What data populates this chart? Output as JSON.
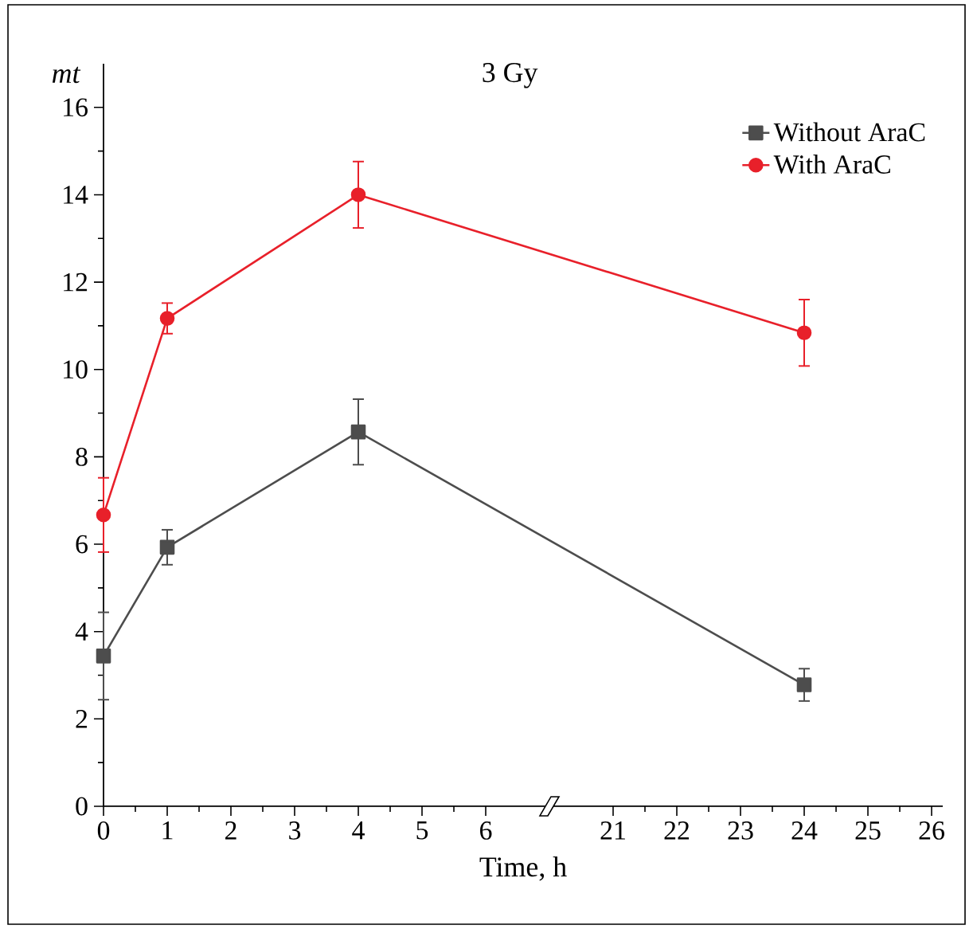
{
  "chart_data": {
    "type": "line",
    "title": "3 Gy",
    "ylabel": "mt",
    "xlabel": "Time, h",
    "legend": "top right",
    "categories": [
      "0",
      "1",
      "2",
      "3",
      "4",
      "5",
      "6",
      null,
      "21",
      "22",
      "23",
      "24",
      "25",
      "26"
    ],
    "ylim": [
      0,
      17
    ],
    "yticks": [
      0,
      2,
      4,
      6,
      8,
      10,
      12,
      14,
      16
    ],
    "series": [
      {
        "name": "Without AraC",
        "color": "#4d4d4d",
        "marker": "square",
        "values": [
          3.44,
          5.93,
          null,
          null,
          8.57,
          null,
          null,
          null,
          null,
          null,
          null,
          2.78,
          null,
          null
        ],
        "errors": [
          1.0,
          0.4,
          null,
          null,
          0.75,
          null,
          null,
          null,
          null,
          null,
          null,
          0.37,
          null,
          null
        ]
      },
      {
        "name": "With AraC",
        "color": "#e8202a",
        "marker": "circle",
        "values": [
          6.67,
          11.17,
          null,
          null,
          14.0,
          null,
          null,
          null,
          null,
          null,
          null,
          10.84,
          null,
          null
        ],
        "errors": [
          0.85,
          0.35,
          null,
          null,
          0.76,
          null,
          null,
          null,
          null,
          null,
          null,
          0.76,
          null,
          null
        ]
      }
    ]
  }
}
